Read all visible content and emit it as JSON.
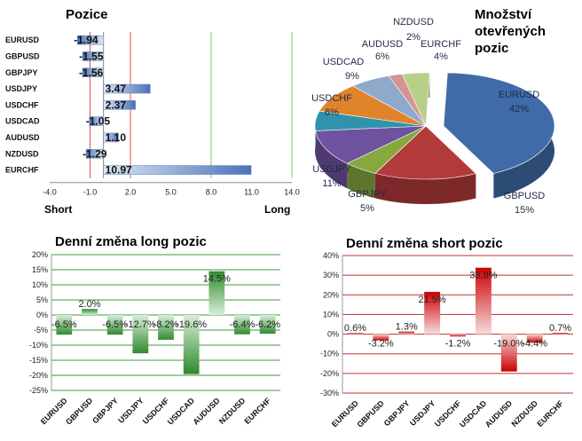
{
  "chart_data": [
    {
      "type": "bar",
      "orientation": "horizontal",
      "title": "Pozice",
      "categories": [
        "EURUSD",
        "GBPUSD",
        "GBPJPY",
        "USDJPY",
        "USDCHF",
        "USDCAD",
        "AUDUSD",
        "NZDUSD",
        "EURCHF"
      ],
      "values": [
        -1.94,
        -1.55,
        -1.56,
        3.47,
        2.37,
        -1.05,
        1.1,
        -1.29,
        10.97
      ],
      "value_labels": [
        "-1.94",
        "-1.55",
        "-1.56",
        "3.47",
        "2.37",
        "-1.05",
        "1.10",
        "-1.29",
        "10.97"
      ],
      "xlim": [
        -4.0,
        14.0
      ],
      "xticks": [
        "-4.0",
        "-1.0",
        "2.0",
        "5.0",
        "8.0",
        "11.0",
        "14.0"
      ],
      "xtick_values": [
        -4,
        -1,
        2,
        5,
        8,
        11,
        14
      ],
      "left_label": "Short",
      "right_label": "Long",
      "colors": {
        "bar": "#4a72b8",
        "bar_light": "#dde6f4",
        "red_line": "#e05050",
        "green_line": "#7cc87c"
      }
    },
    {
      "type": "pie",
      "title": "Množství otevřených pozic",
      "title_lines": [
        "Množství",
        "otevřených",
        "pozic"
      ],
      "slices": [
        {
          "name": "EURUSD",
          "value": 42,
          "label": "42%",
          "color": "#3f6ca8"
        },
        {
          "name": "GBPUSD",
          "value": 15,
          "label": "15%",
          "color": "#b33a3a"
        },
        {
          "name": "GBPJPY",
          "value": 5,
          "label": "5%",
          "color": "#86a83f"
        },
        {
          "name": "USDJPY",
          "value": 11,
          "label": "11%",
          "color": "#6f52a0"
        },
        {
          "name": "USDCHF",
          "value": 6,
          "label": "6%",
          "color": "#2f93ad"
        },
        {
          "name": "USDCAD",
          "value": 9,
          "label": "9%",
          "color": "#e0842a"
        },
        {
          "name": "AUDUSD",
          "value": 6,
          "label": "6%",
          "color": "#8fa8cc"
        },
        {
          "name": "NZDUSD",
          "value": 2,
          "label": "2%",
          "color": "#d49494"
        },
        {
          "name": "EURCHF",
          "value": 4,
          "label": "4%",
          "color": "#b8cf88"
        }
      ]
    },
    {
      "type": "bar",
      "title": "Denní změna long pozic",
      "categories": [
        "EURUSD",
        "GBPUSD",
        "GBPJPY",
        "USDJPY",
        "USDCHF",
        "USDCAD",
        "AUDUSD",
        "NZDUSD",
        "EURCHF"
      ],
      "values": [
        -6.5,
        2.0,
        -6.5,
        -12.7,
        -8.2,
        -19.6,
        14.5,
        -6.4,
        -6.2
      ],
      "value_labels": [
        "-6.5%",
        "2.0%",
        "-6.5%",
        "-12.7%",
        "-8.2%",
        "-19.6%",
        "14.5%",
        "-6.4%",
        "-6.2%"
      ],
      "ylim": [
        -25,
        20
      ],
      "yticks": [
        "20%",
        "15%",
        "10%",
        "5%",
        "0%",
        "-5%",
        "-10%",
        "-15%",
        "-20%",
        "-25%"
      ],
      "ytick_values": [
        20,
        15,
        10,
        5,
        0,
        -5,
        -10,
        -15,
        -20,
        -25
      ],
      "colors": {
        "bar": "#2f8a2f",
        "bar_light": "#d8eed8",
        "grid": "#3f9a3f"
      }
    },
    {
      "type": "bar",
      "title": "Denní změna short pozic",
      "categories": [
        "EURUSD",
        "GBPUSD",
        "GBPJPY",
        "USDJPY",
        "USDCHF",
        "USDCAD",
        "AUDUSD",
        "NZDUSD",
        "EURCHF"
      ],
      "values": [
        0.6,
        -3.2,
        1.3,
        21.5,
        -1.2,
        33.8,
        -19.0,
        -4.4,
        0.7
      ],
      "value_labels": [
        "0.6%",
        "-3.2%",
        "1.3%",
        "21.5%",
        "-1.2%",
        "33.8%",
        "-19.0%",
        "-4.4%",
        "0.7%"
      ],
      "ylim": [
        -30,
        40
      ],
      "yticks": [
        "40%",
        "30%",
        "20%",
        "10%",
        "0%",
        "-10%",
        "-20%",
        "-30%"
      ],
      "ytick_values": [
        40,
        30,
        20,
        10,
        0,
        -10,
        -20,
        -30
      ],
      "colors": {
        "bar": "#cc0000",
        "bar_light": "#f6dcdc",
        "grid": "#c03030"
      }
    }
  ]
}
